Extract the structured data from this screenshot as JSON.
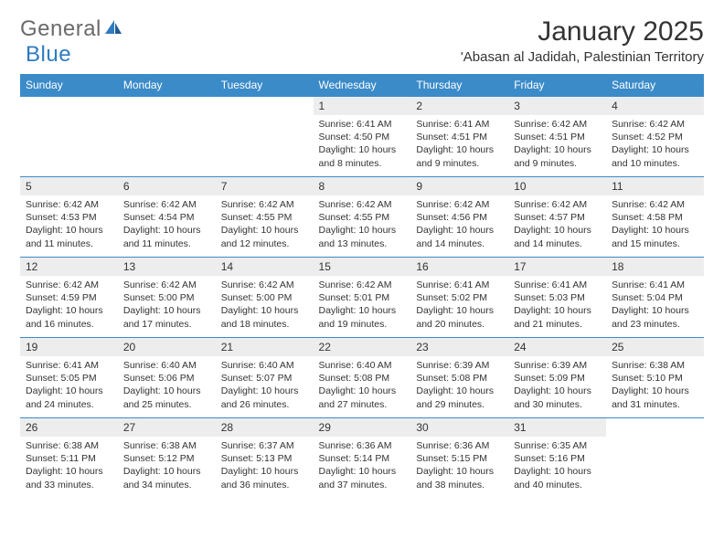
{
  "logo": {
    "part1": "General",
    "part2": "Blue"
  },
  "title": "January 2025",
  "location": "'Abasan al Jadidah, Palestinian Territory",
  "colors": {
    "header_bg": "#3b8bc9",
    "header_text": "#ffffff",
    "daynum_bg": "#ededed",
    "border": "#3b8bc9",
    "logo_gray": "#6a6a6a",
    "logo_blue": "#2f7bbf",
    "text": "#333333",
    "background": "#ffffff"
  },
  "day_headers": [
    "Sunday",
    "Monday",
    "Tuesday",
    "Wednesday",
    "Thursday",
    "Friday",
    "Saturday"
  ],
  "weeks": [
    [
      null,
      null,
      null,
      {
        "n": "1",
        "sr": "6:41 AM",
        "ss": "4:50 PM",
        "dl": "10 hours and 8 minutes."
      },
      {
        "n": "2",
        "sr": "6:41 AM",
        "ss": "4:51 PM",
        "dl": "10 hours and 9 minutes."
      },
      {
        "n": "3",
        "sr": "6:42 AM",
        "ss": "4:51 PM",
        "dl": "10 hours and 9 minutes."
      },
      {
        "n": "4",
        "sr": "6:42 AM",
        "ss": "4:52 PM",
        "dl": "10 hours and 10 minutes."
      }
    ],
    [
      {
        "n": "5",
        "sr": "6:42 AM",
        "ss": "4:53 PM",
        "dl": "10 hours and 11 minutes."
      },
      {
        "n": "6",
        "sr": "6:42 AM",
        "ss": "4:54 PM",
        "dl": "10 hours and 11 minutes."
      },
      {
        "n": "7",
        "sr": "6:42 AM",
        "ss": "4:55 PM",
        "dl": "10 hours and 12 minutes."
      },
      {
        "n": "8",
        "sr": "6:42 AM",
        "ss": "4:55 PM",
        "dl": "10 hours and 13 minutes."
      },
      {
        "n": "9",
        "sr": "6:42 AM",
        "ss": "4:56 PM",
        "dl": "10 hours and 14 minutes."
      },
      {
        "n": "10",
        "sr": "6:42 AM",
        "ss": "4:57 PM",
        "dl": "10 hours and 14 minutes."
      },
      {
        "n": "11",
        "sr": "6:42 AM",
        "ss": "4:58 PM",
        "dl": "10 hours and 15 minutes."
      }
    ],
    [
      {
        "n": "12",
        "sr": "6:42 AM",
        "ss": "4:59 PM",
        "dl": "10 hours and 16 minutes."
      },
      {
        "n": "13",
        "sr": "6:42 AM",
        "ss": "5:00 PM",
        "dl": "10 hours and 17 minutes."
      },
      {
        "n": "14",
        "sr": "6:42 AM",
        "ss": "5:00 PM",
        "dl": "10 hours and 18 minutes."
      },
      {
        "n": "15",
        "sr": "6:42 AM",
        "ss": "5:01 PM",
        "dl": "10 hours and 19 minutes."
      },
      {
        "n": "16",
        "sr": "6:41 AM",
        "ss": "5:02 PM",
        "dl": "10 hours and 20 minutes."
      },
      {
        "n": "17",
        "sr": "6:41 AM",
        "ss": "5:03 PM",
        "dl": "10 hours and 21 minutes."
      },
      {
        "n": "18",
        "sr": "6:41 AM",
        "ss": "5:04 PM",
        "dl": "10 hours and 23 minutes."
      }
    ],
    [
      {
        "n": "19",
        "sr": "6:41 AM",
        "ss": "5:05 PM",
        "dl": "10 hours and 24 minutes."
      },
      {
        "n": "20",
        "sr": "6:40 AM",
        "ss": "5:06 PM",
        "dl": "10 hours and 25 minutes."
      },
      {
        "n": "21",
        "sr": "6:40 AM",
        "ss": "5:07 PM",
        "dl": "10 hours and 26 minutes."
      },
      {
        "n": "22",
        "sr": "6:40 AM",
        "ss": "5:08 PM",
        "dl": "10 hours and 27 minutes."
      },
      {
        "n": "23",
        "sr": "6:39 AM",
        "ss": "5:08 PM",
        "dl": "10 hours and 29 minutes."
      },
      {
        "n": "24",
        "sr": "6:39 AM",
        "ss": "5:09 PM",
        "dl": "10 hours and 30 minutes."
      },
      {
        "n": "25",
        "sr": "6:38 AM",
        "ss": "5:10 PM",
        "dl": "10 hours and 31 minutes."
      }
    ],
    [
      {
        "n": "26",
        "sr": "6:38 AM",
        "ss": "5:11 PM",
        "dl": "10 hours and 33 minutes."
      },
      {
        "n": "27",
        "sr": "6:38 AM",
        "ss": "5:12 PM",
        "dl": "10 hours and 34 minutes."
      },
      {
        "n": "28",
        "sr": "6:37 AM",
        "ss": "5:13 PM",
        "dl": "10 hours and 36 minutes."
      },
      {
        "n": "29",
        "sr": "6:36 AM",
        "ss": "5:14 PM",
        "dl": "10 hours and 37 minutes."
      },
      {
        "n": "30",
        "sr": "6:36 AM",
        "ss": "5:15 PM",
        "dl": "10 hours and 38 minutes."
      },
      {
        "n": "31",
        "sr": "6:35 AM",
        "ss": "5:16 PM",
        "dl": "10 hours and 40 minutes."
      },
      null
    ]
  ],
  "labels": {
    "sunrise": "Sunrise: ",
    "sunset": "Sunset: ",
    "daylight": "Daylight: "
  }
}
